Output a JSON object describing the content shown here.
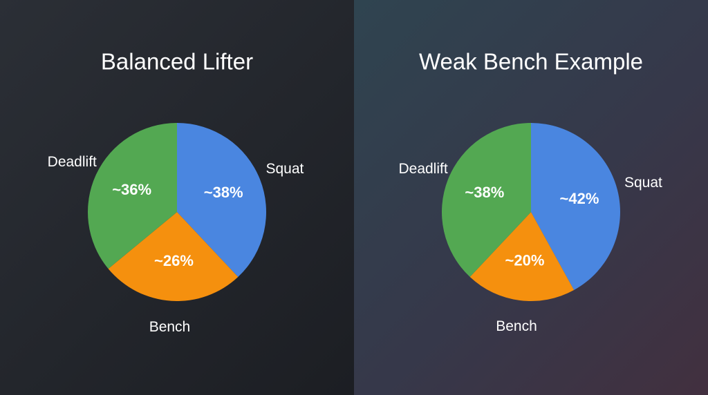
{
  "chart_data": [
    {
      "type": "pie",
      "title": "Balanced Lifter",
      "categories": [
        "Squat",
        "Bench",
        "Deadlift"
      ],
      "values": [
        38,
        26,
        36
      ],
      "value_labels": [
        "~38%",
        "~26%",
        "~36%"
      ],
      "colors": [
        "#4a86e0",
        "#f5900e",
        "#53a852"
      ]
    },
    {
      "type": "pie",
      "title": "Weak Bench Example",
      "categories": [
        "Squat",
        "Bench",
        "Deadlift"
      ],
      "values": [
        42,
        20,
        38
      ],
      "value_labels": [
        "~42%",
        "~20%",
        "~38%"
      ],
      "colors": [
        "#4a86e0",
        "#f5900e",
        "#53a852"
      ]
    }
  ]
}
